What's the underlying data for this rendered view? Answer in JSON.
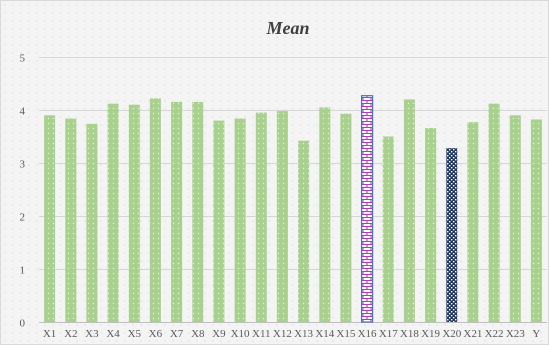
{
  "chart_data": {
    "type": "bar",
    "title": "Mean",
    "xlabel": "",
    "ylabel": "",
    "ylim": [
      0,
      5
    ],
    "yticks": [
      0,
      1,
      2,
      3,
      4,
      5
    ],
    "grid": true,
    "legend": "none",
    "categories": [
      "X1",
      "X2",
      "X3",
      "X4",
      "X5",
      "X6",
      "X7",
      "X8",
      "X9",
      "X10",
      "X11",
      "X12",
      "X13",
      "X14",
      "X15",
      "X16",
      "X17",
      "X18",
      "X19",
      "X20",
      "X21",
      "X22",
      "X23",
      "Y"
    ],
    "values": [
      3.9,
      3.84,
      3.74,
      4.12,
      4.1,
      4.22,
      4.15,
      4.15,
      3.8,
      3.84,
      3.95,
      3.98,
      3.42,
      4.05,
      3.93,
      4.27,
      3.5,
      4.2,
      3.66,
      3.28,
      3.77,
      4.12,
      3.9,
      3.82
    ],
    "colors": {
      "default_bar": "#a9d18e",
      "default_dot": "#e2f0d9",
      "highlight_brick_fill": "#ffffff",
      "highlight_brick_pattern": "#b03ac0",
      "highlight_brick_border": "#4472c4",
      "highlight_dark_fill": "#1f3864",
      "highlight_dark_pattern": "#ffffff"
    },
    "bar_styles": [
      "dotted",
      "dotted",
      "dotted",
      "dotted",
      "dotted",
      "dotted",
      "dotted",
      "dotted",
      "dotted",
      "dotted",
      "dotted",
      "dotted",
      "dotted",
      "dotted",
      "dotted",
      "brick",
      "dotted",
      "dotted",
      "dotted",
      "checker",
      "dotted",
      "dotted",
      "dotted",
      "dotted"
    ]
  }
}
